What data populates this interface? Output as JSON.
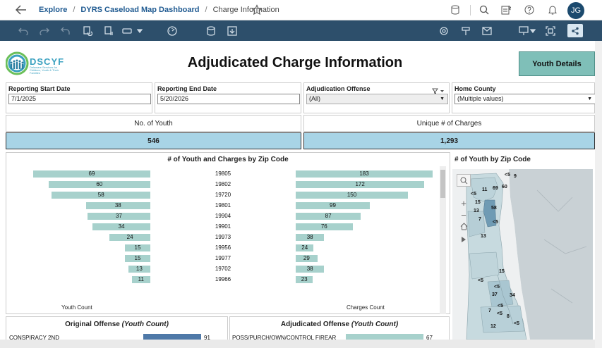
{
  "breadcrumb": {
    "explore": "Explore",
    "sep": "/",
    "workbook": "DYRS Caseload Map Dashboard",
    "current": "Charge Information"
  },
  "user": {
    "initials": "JG"
  },
  "logo": {
    "name": "DSCYF",
    "tagline": "Delaware Services for Children, Youth & Their Families"
  },
  "dashboard": {
    "title": "Adjudicated Charge Information",
    "youth_details_button": "Youth Details"
  },
  "filters": {
    "start": {
      "label": "Reporting Start Date",
      "value": "7/1/2025"
    },
    "end": {
      "label": "Reporting End Date",
      "value": "5/20/2026"
    },
    "offense": {
      "label": "Adjudication Offense",
      "value": "(All)"
    },
    "county": {
      "label": "Home County",
      "value": "(Multiple values)"
    }
  },
  "kpis": {
    "youth": {
      "label": "No. of Youth",
      "value": "546"
    },
    "charges": {
      "label": "Unique # of Charges",
      "value": "1,293"
    }
  },
  "zip_chart": {
    "title": "# of Youth and Charges by Zip Code",
    "left_axis": "Youth Count",
    "right_axis": "Charges Count",
    "bar_color": "#a7d1cc"
  },
  "chart_data": {
    "type": "bar",
    "categories": [
      "19805",
      "19802",
      "19720",
      "19801",
      "19904",
      "19901",
      "19973",
      "19956",
      "19977",
      "19702",
      "19966"
    ],
    "series": [
      {
        "name": "Youth Count",
        "values": [
          69,
          60,
          58,
          38,
          37,
          34,
          24,
          15,
          15,
          13,
          11
        ]
      },
      {
        "name": "Charges Count",
        "values": [
          183,
          172,
          150,
          99,
          87,
          76,
          38,
          24,
          29,
          38,
          23
        ]
      }
    ]
  },
  "map": {
    "title": "# of Youth by Zip Code",
    "labels": [
      "<5",
      "9",
      "11",
      "69",
      "60",
      "<5",
      "15",
      "58",
      "13",
      "7",
      "<5",
      "13",
      "15",
      "<5",
      "<5",
      "37",
      "34",
      "<5",
      "7",
      "<5",
      "8",
      "12",
      "<5"
    ]
  },
  "bottom": {
    "original": {
      "title": "Original Offense",
      "title_suffix": "(Youth Count)",
      "row_label": "CONSPIRACY 2ND",
      "row_value": "91"
    },
    "adjudicated": {
      "title": "Adjudicated Offense",
      "title_suffix": "(Youth Count)",
      "row_label": "POSS/PURCH/OWN/CONTROL FIREAR",
      "row_value": "67"
    }
  }
}
